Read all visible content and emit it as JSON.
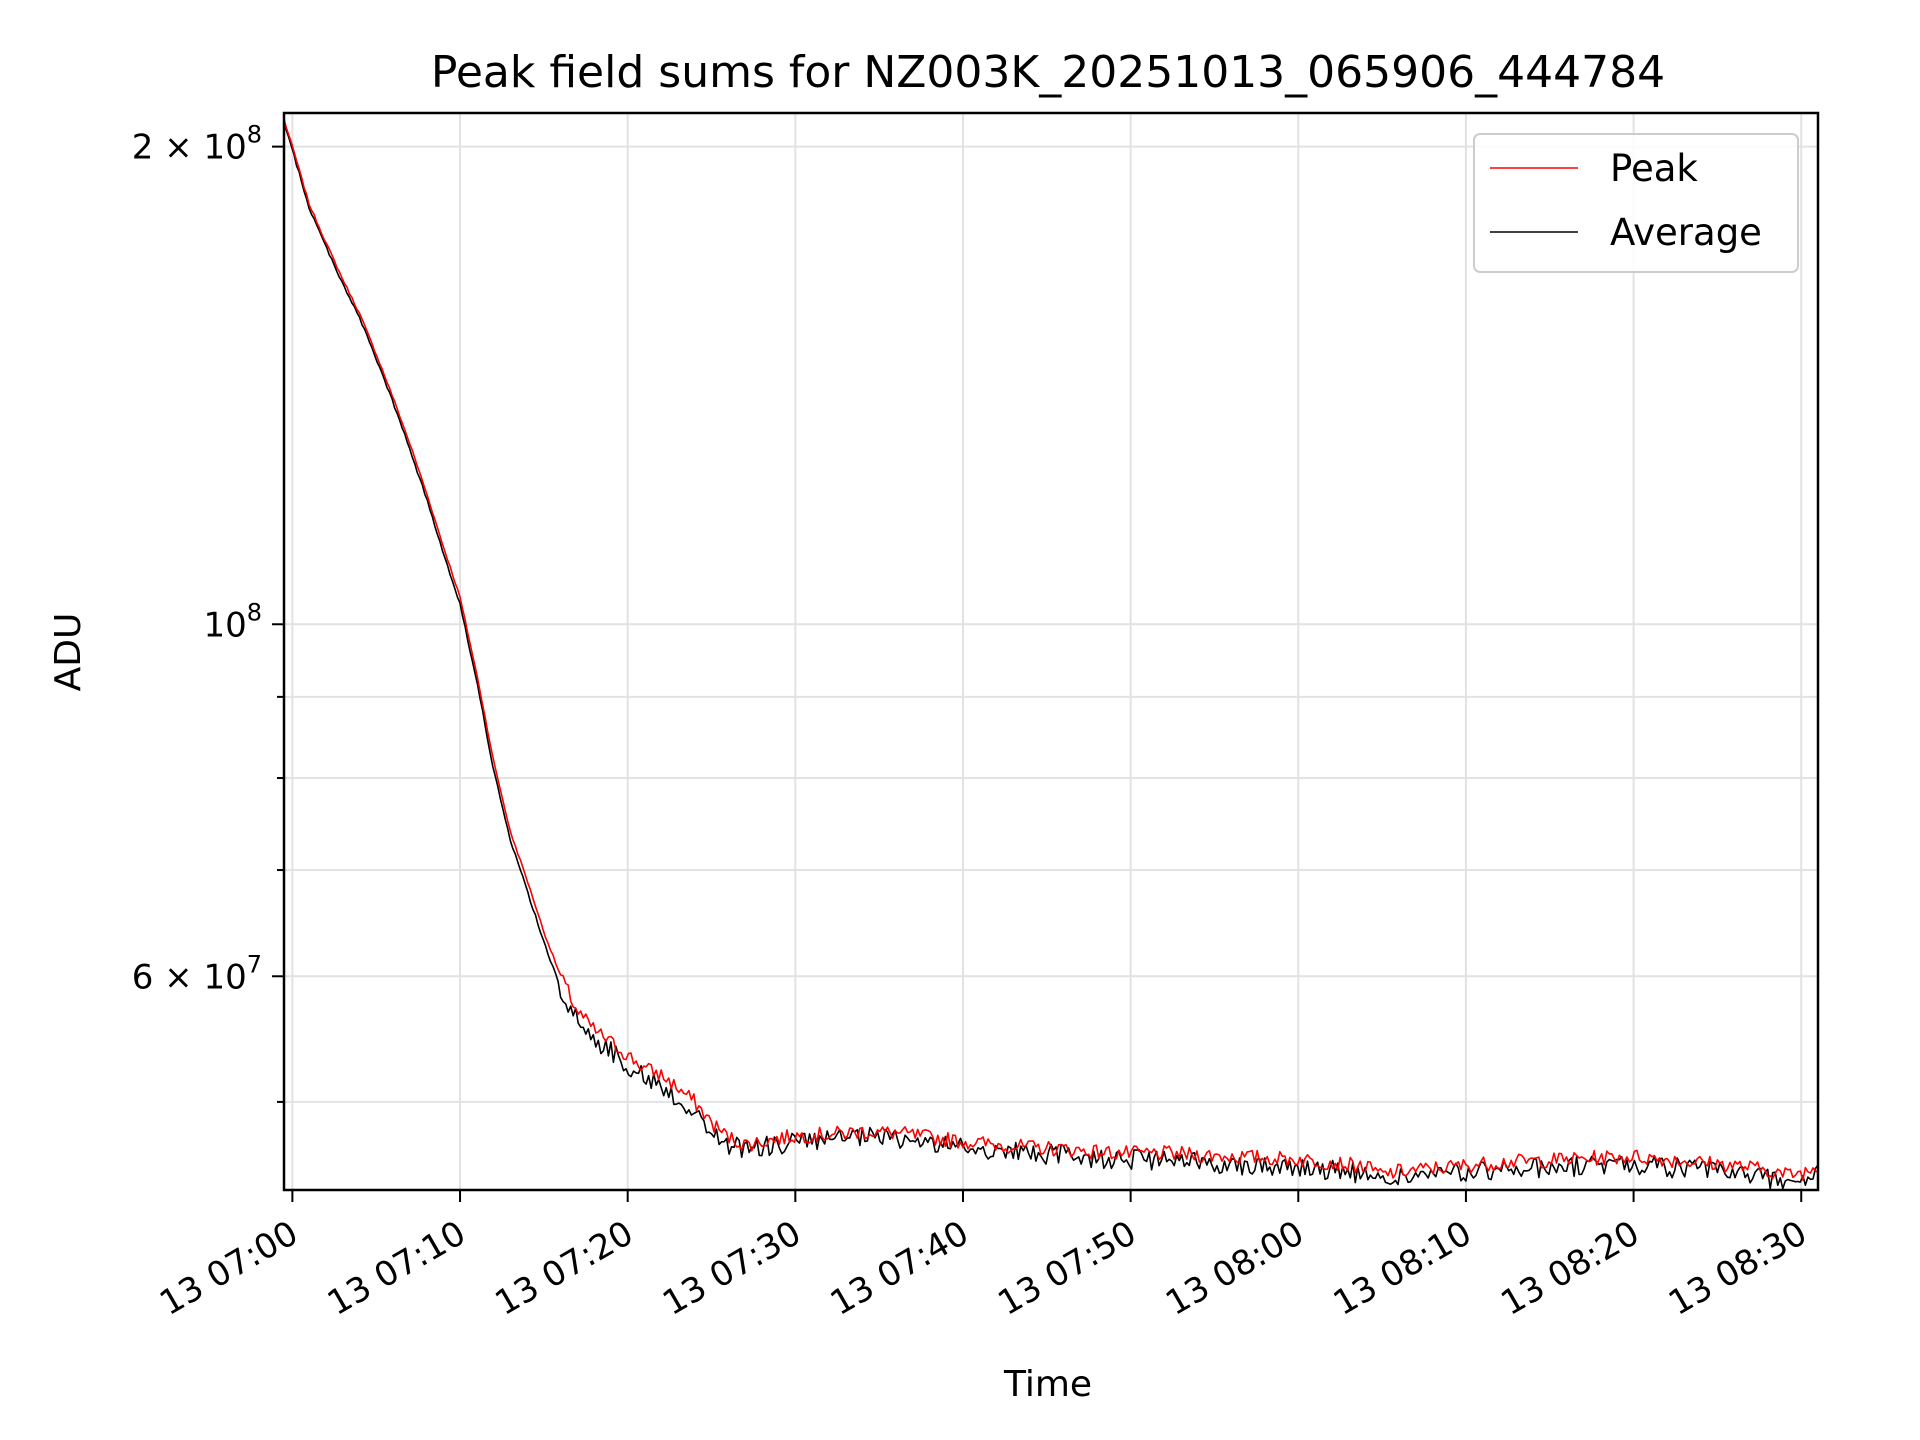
{
  "colors": {
    "peak": "#ff0000",
    "average": "#000000",
    "grid": "#e2e2e2",
    "legend_border": "#cccccc"
  },
  "chart_data": {
    "type": "line",
    "title": "Peak field sums for NZ003K_20251013_065906_444784",
    "xlabel": "Time",
    "ylabel": "ADU",
    "yscale": "log",
    "ylim": [
      44000000,
      210000000
    ],
    "xlim_minutes": [
      -0.5,
      91
    ],
    "x_unit": "minutes after 13 07:00",
    "grid": true,
    "legend_position": "upper right",
    "x_ticks": [
      {
        "value": 0,
        "label": "13 07:00"
      },
      {
        "value": 10,
        "label": "13 07:10"
      },
      {
        "value": 20,
        "label": "13 07:20"
      },
      {
        "value": 30,
        "label": "13 07:30"
      },
      {
        "value": 40,
        "label": "13 07:40"
      },
      {
        "value": 50,
        "label": "13 07:50"
      },
      {
        "value": 60,
        "label": "13 08:00"
      },
      {
        "value": 70,
        "label": "13 08:10"
      },
      {
        "value": 80,
        "label": "13 08:20"
      },
      {
        "value": 90,
        "label": "13 08:30"
      }
    ],
    "y_major_ticks": [
      {
        "value": 200000000,
        "base": "2 × 10",
        "exp": "8"
      },
      {
        "value": 100000000,
        "base": "10",
        "exp": "8"
      },
      {
        "value": 60000000,
        "base": "6 × 10",
        "exp": "7"
      }
    ],
    "y_minor_ticks": [
      50000000,
      70000000,
      80000000,
      90000000
    ],
    "series": [
      {
        "name": "Peak",
        "color": "#ff0000",
        "x": [
          -0.5,
          0,
          1,
          2,
          3,
          4,
          5,
          6,
          7,
          8,
          9,
          10,
          11,
          12,
          13,
          14,
          15,
          16,
          17,
          18,
          19,
          20,
          21,
          22,
          23,
          24,
          25,
          26,
          27,
          28,
          29,
          30,
          32,
          34,
          36,
          38,
          40,
          42,
          44,
          46,
          48,
          50,
          52,
          54,
          56,
          58,
          60,
          62,
          64,
          65,
          66,
          68,
          70,
          72,
          74,
          76,
          78,
          80,
          82,
          84,
          86,
          88,
          89,
          90,
          91
        ],
        "y": [
          208000000,
          200000000,
          184000000,
          174000000,
          165000000,
          157000000,
          148000000,
          139000000,
          130000000,
          121000000,
          112000000,
          104000000,
          93000000,
          82000000,
          74000000,
          69000000,
          64000000,
          60000000,
          57000000,
          55500000,
          54500000,
          53500000,
          52500000,
          52000000,
          51000000,
          50000000,
          48500000,
          47500000,
          47000000,
          47200000,
          47400000,
          47600000,
          47700000,
          47900000,
          47800000,
          47500000,
          47200000,
          47000000,
          46800000,
          46700000,
          46500000,
          46400000,
          46400000,
          46300000,
          46200000,
          46100000,
          46000000,
          45800000,
          45500000,
          45000000,
          45200000,
          45400000,
          45600000,
          45800000,
          45900000,
          46000000,
          46100000,
          46200000,
          46000000,
          45800000,
          45600000,
          45300000,
          45000000,
          45100000,
          45500000
        ]
      },
      {
        "name": "Average",
        "color": "#000000",
        "x": [
          -0.5,
          0,
          1,
          2,
          3,
          4,
          5,
          6,
          7,
          8,
          9,
          10,
          11,
          12,
          13,
          14,
          15,
          16,
          17,
          18,
          19,
          20,
          21,
          22,
          23,
          24,
          25,
          26,
          27,
          28,
          29,
          30,
          32,
          34,
          36,
          38,
          40,
          42,
          44,
          46,
          48,
          50,
          52,
          54,
          56,
          58,
          60,
          62,
          64,
          65,
          66,
          68,
          70,
          72,
          74,
          76,
          78,
          80,
          82,
          84,
          86,
          88,
          89,
          90,
          91
        ],
        "y": [
          207000000,
          199000000,
          183000000,
          173000000,
          164000000,
          156000000,
          147000000,
          138000000,
          129000000,
          120000000,
          111000000,
          103000000,
          92000000,
          81000000,
          73000000,
          68000000,
          63000000,
          59000000,
          56200000,
          54800000,
          53800000,
          52800000,
          51800000,
          51200000,
          50200000,
          49200000,
          47800000,
          47000000,
          46700000,
          46800000,
          47000000,
          47200000,
          47300000,
          47500000,
          47400000,
          47100000,
          46800000,
          46600000,
          46400000,
          46300000,
          46100000,
          46000000,
          45900000,
          45800000,
          45700000,
          45600000,
          45500000,
          45300000,
          45000000,
          44600000,
          44800000,
          45000000,
          45100000,
          45300000,
          45400000,
          45500000,
          45600000,
          45700000,
          45500000,
          45300000,
          45100000,
          44800000,
          44500000,
          44600000,
          45000000
        ]
      }
    ]
  }
}
